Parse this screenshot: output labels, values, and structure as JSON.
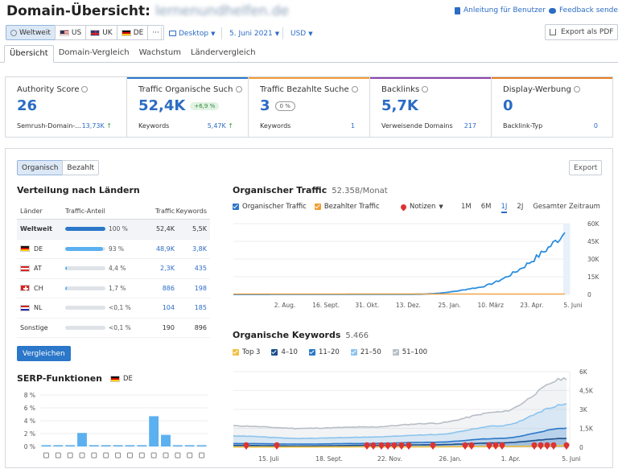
{
  "header": {
    "title": "Domain-Übersicht:",
    "domain": "lernenundhelfen.de",
    "guide_link": "Anleitung für Benutzer",
    "feedback_link": "Feedback senden"
  },
  "toolbar": {
    "databases": [
      {
        "label": "Weltweit",
        "flag": "globe-icon",
        "selected": true
      },
      {
        "label": "US",
        "flag": "flag-us"
      },
      {
        "label": "UK",
        "flag": "flag-uk"
      },
      {
        "label": "DE",
        "flag": "flag-de"
      },
      {
        "label": "···"
      }
    ],
    "device": "Desktop",
    "date": "5. Juni 2021",
    "currency": "USD",
    "export_pdf": "Export als PDF"
  },
  "tabs": [
    "Übersicht",
    "Domain-Vergleich",
    "Wachstum",
    "Ländervergleich"
  ],
  "cards": [
    {
      "title": "Authority Score",
      "value": "26",
      "foot_left": "Semrush-Domain-...",
      "foot_right": "13,73K",
      "color": "#1a4f8c"
    },
    {
      "title": "Traffic Organische Such",
      "value": "52,4K",
      "badge": "+6,9 %",
      "foot_left": "Keywords",
      "foot_right": "5,47K",
      "color": "#2b77c9"
    },
    {
      "title": "Traffic Bezahlte Suche",
      "value": "3",
      "badge": "0 %",
      "foot_left": "Keywords",
      "foot_right": "1",
      "color": "#f39c32"
    },
    {
      "title": "Backlinks",
      "value": "5,7K",
      "foot_left": "Verweisende Domains",
      "foot_right": "217",
      "color": "#8e44ad"
    },
    {
      "title": "Display-Werbung",
      "value": "0",
      "foot_left": "Backlink-Typ",
      "foot_right": "0",
      "color": "#e67e22"
    }
  ],
  "panel": {
    "toggle": [
      "Organisch",
      "Bezahlt"
    ],
    "export": "Export"
  },
  "countries": {
    "title": "Verteilung nach Ländern",
    "headers": [
      "Länder",
      "Traffic-Anteil",
      "Traffic",
      "Keywords"
    ],
    "rows": [
      {
        "land": "Weltweit",
        "share": "100 %",
        "fill": 1.0,
        "traffic": "52,4K",
        "keywords": "5,5K",
        "flag": ""
      },
      {
        "land": "DE",
        "share": "93 %",
        "fill": 0.93,
        "traffic": "48,9K",
        "keywords": "3,8K",
        "flag": "flag-de"
      },
      {
        "land": "AT",
        "share": "4,4 %",
        "fill": 0.044,
        "traffic": "2,3K",
        "keywords": "435",
        "flag": "flag-at"
      },
      {
        "land": "CH",
        "share": "1,7 %",
        "fill": 0.017,
        "traffic": "886",
        "keywords": "198",
        "flag": "flag-ch"
      },
      {
        "land": "NL",
        "share": "<0,1 %",
        "fill": 0.0,
        "traffic": "104",
        "keywords": "185",
        "flag": "flag-nl"
      },
      {
        "land": "Sonstige",
        "share": "<0,1 %",
        "fill": 0.0,
        "traffic": "190",
        "keywords": "896",
        "flag": ""
      }
    ],
    "compare_button": "Vergleichen"
  },
  "serp": {
    "title": "SERP-Funktionen",
    "db": "DE"
  },
  "traffic_chart": {
    "title": "Organischer Traffic",
    "subtitle": "52.358/Monat",
    "legend": [
      "Organischer Traffic",
      "Bezahlter Traffic"
    ],
    "notes": "Notizen",
    "periods": [
      "1M",
      "6M",
      "1J",
      "2J",
      "Gesamter Zeitraum"
    ],
    "active_period": "1J"
  },
  "keywords_chart": {
    "title": "Organische Keywords",
    "subtitle": "5.466",
    "legend": [
      "Top 3",
      "4–10",
      "11–20",
      "21–50",
      "51–100"
    ]
  },
  "colors": {
    "blue": "#2b77c9",
    "light_blue": "#5bb0f0",
    "orange": "#f39c32",
    "yellow": "#f0c040",
    "grey": "#b8bec6",
    "dark_blue": "#1a4f8c"
  },
  "chart_data": [
    {
      "type": "line",
      "title": "Organischer Traffic",
      "x": [
        "2. Aug.",
        "16. Sept.",
        "31. Okt.",
        "13. Dez.",
        "25. Jan.",
        "10. März",
        "23. Apr.",
        "5. Juni"
      ],
      "ylim": [
        0,
        60000
      ],
      "yticks": [
        "0",
        "15K",
        "30K",
        "45K",
        "60K"
      ],
      "series": [
        {
          "name": "Organischer Traffic",
          "values": [
            0,
            0,
            0,
            100,
            800,
            8000,
            25000,
            52358
          ]
        },
        {
          "name": "Bezahlter Traffic",
          "values": [
            0,
            0,
            0,
            0,
            0,
            0,
            0,
            3
          ]
        }
      ]
    },
    {
      "type": "area",
      "title": "Organische Keywords",
      "x": [
        "15. Juli",
        "18. Sept.",
        "22. Nov.",
        "26. Jan.",
        "1. Apr.",
        "5. Juni"
      ],
      "ylim": [
        0,
        6000
      ],
      "yticks": [
        "0",
        "1,5K",
        "3K",
        "4,5K",
        "6K"
      ],
      "series": [
        {
          "name": "51–100",
          "values": [
            1700,
            1500,
            1600,
            1900,
            2800,
            5466
          ]
        },
        {
          "name": "21–50",
          "values": [
            900,
            700,
            800,
            1000,
            1700,
            3400
          ]
        },
        {
          "name": "11–20",
          "values": [
            300,
            250,
            300,
            400,
            700,
            1500
          ]
        },
        {
          "name": "4–10",
          "values": [
            150,
            100,
            150,
            200,
            350,
            700
          ]
        },
        {
          "name": "Top 3",
          "values": [
            20,
            20,
            30,
            40,
            60,
            120
          ]
        }
      ]
    },
    {
      "type": "bar",
      "title": "SERP-Funktionen",
      "ylim": [
        0,
        8
      ],
      "yticks": [
        "0 %",
        "2 %",
        "4 %",
        "6 %",
        "8 %"
      ],
      "categories": [
        "featured",
        "local",
        "reviews",
        "image",
        "link",
        "video",
        "star",
        "play",
        "news",
        "crown",
        "img",
        "top",
        "kp",
        "faq"
      ],
      "values": [
        0.2,
        0.2,
        0.2,
        2.1,
        0.2,
        0.2,
        0.2,
        0.2,
        0.2,
        4.7,
        1.8,
        0.2,
        0.2,
        0.2
      ]
    }
  ]
}
